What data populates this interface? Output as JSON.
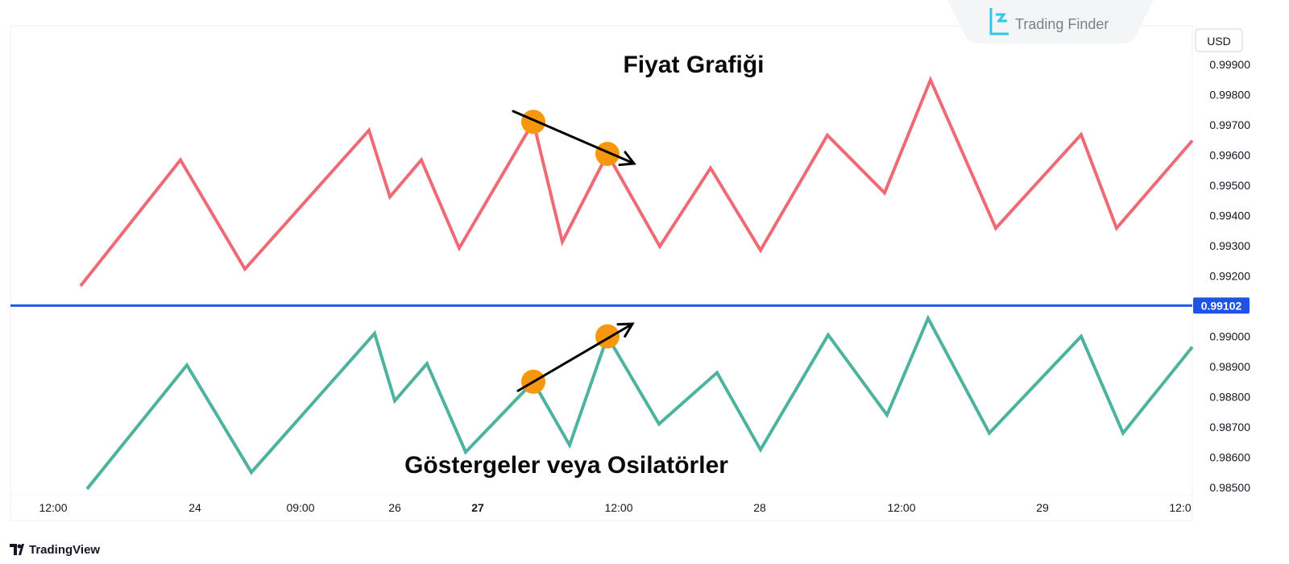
{
  "brand": {
    "watermark_text": "Trading Finder",
    "footer_text": "TradingView"
  },
  "colors": {
    "price_line": "#ee6b76",
    "indicator_line": "#4db39f",
    "horizontal_line": "#1e53e5",
    "marker": "#f7960f",
    "arrow": "#000000",
    "price_tag_bg": "#1e53e5"
  },
  "chart_data": {
    "type": "line",
    "currency": "USD",
    "last_price_label": "0.99102",
    "horizontal_line_value": 0.99102,
    "ylim": [
      0.9845,
      0.9995
    ],
    "y_ticks": [
      "0.99900",
      "0.99800",
      "0.99700",
      "0.99600",
      "0.99500",
      "0.99400",
      "0.99300",
      "0.99200",
      "0.99000",
      "0.98900",
      "0.98800",
      "0.98700",
      "0.98600",
      "0.98500"
    ],
    "x_ticks": [
      {
        "label": "12:00",
        "bold": false
      },
      {
        "label": "24",
        "bold": false
      },
      {
        "label": "09:00",
        "bold": false
      },
      {
        "label": "26",
        "bold": false
      },
      {
        "label": "27",
        "bold": true
      },
      {
        "label": "12:00",
        "bold": false
      },
      {
        "label": "28",
        "bold": false
      },
      {
        "label": "12:00",
        "bold": false
      },
      {
        "label": "29",
        "bold": false
      },
      {
        "label": "12:0",
        "bold": false
      }
    ],
    "annotations": {
      "top_label": "Fiyat Grafiği",
      "bottom_label": "Göstergeler veya Osilatörler"
    },
    "series": [
      {
        "values": [
          0.99167,
          0.99584,
          0.99223,
          0.99682,
          0.99462,
          0.99584,
          0.99292,
          0.9971,
          0.99313,
          0.99604,
          0.99298,
          0.99557,
          0.99285,
          0.99666,
          0.99475,
          0.99849,
          0.99358,
          0.99668,
          0.99358,
          0.99648
        ],
        "markers": [
          7,
          9
        ]
      },
      {
        "values": [
          0.98495,
          0.98905,
          0.9855,
          0.9901,
          0.98787,
          0.9891,
          0.98617,
          0.9885,
          0.9864,
          0.99,
          0.9871,
          0.9888,
          0.98625,
          0.99005,
          0.9874,
          0.9906,
          0.9868,
          0.99,
          0.9868,
          0.98965
        ],
        "markers": [
          7,
          9
        ]
      }
    ]
  }
}
